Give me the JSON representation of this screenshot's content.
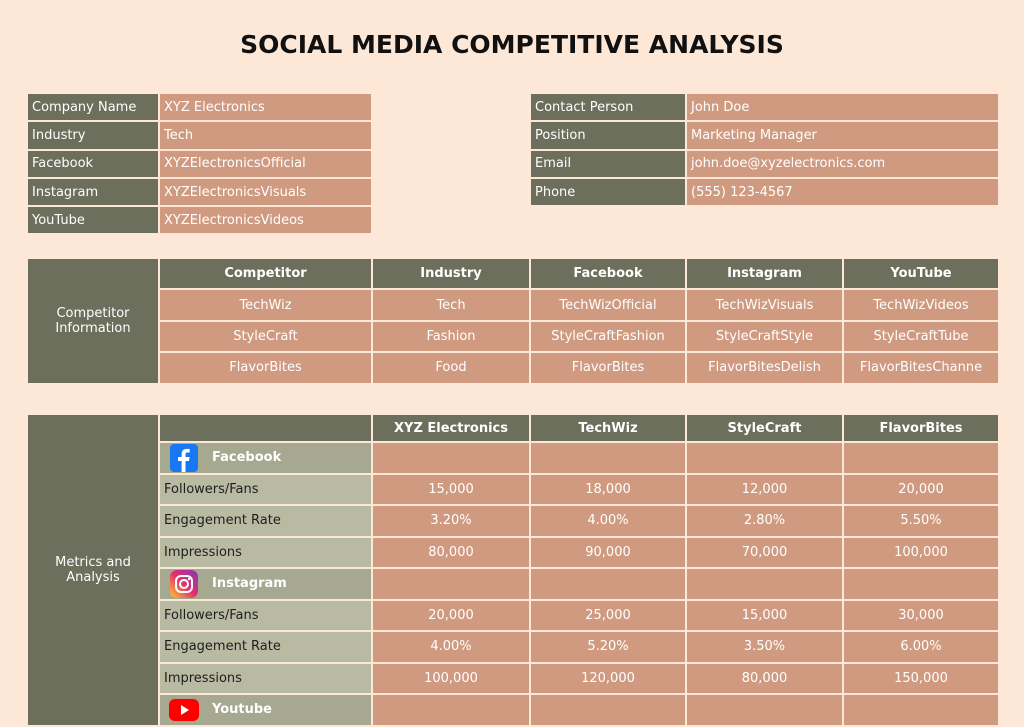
{
  "title": "SOCIAL MEDIA COMPETITIVE ANALYSIS",
  "company_info": {
    "rows": [
      [
        "Company Name",
        "XYZ Electronics"
      ],
      [
        "Industry",
        "Tech"
      ],
      [
        "Facebook",
        "XYZElectronicsOfficial"
      ],
      [
        "Instagram",
        "XYZElectronicsVisuals"
      ],
      [
        "YouTube",
        "XYZElectronicsVideos"
      ]
    ]
  },
  "contact_info": {
    "rows": [
      [
        "Contact Person",
        "John Doe"
      ],
      [
        "Position",
        "Marketing Manager"
      ],
      [
        "Email",
        "john.doe@xyzelectronics.com"
      ],
      [
        "Phone",
        "(555) 123-4567"
      ]
    ]
  },
  "competitors": {
    "label": "Competitor Information",
    "header": [
      "Competitor",
      "Industry",
      "Facebook",
      "Instagram",
      "YouTube"
    ],
    "rows": [
      [
        "TechWiz",
        "Tech",
        "TechWizOfficial",
        "TechWizVisuals",
        "TechWizVideos"
      ],
      [
        "StyleCraft",
        "Fashion",
        "StyleCraftFashion",
        "StyleCraftStyle",
        "StyleCraftTube"
      ],
      [
        "FlavorBites",
        "Food",
        "FlavorBites",
        "FlavorBitesDelish",
        "FlavorBitesChanne"
      ]
    ]
  },
  "metrics": {
    "label": "Metrics and Analysis",
    "header": [
      "XYZ Electronics",
      "TechWiz",
      "StyleCraft",
      "FlavorBites"
    ],
    "sections": [
      {
        "platform": "Facebook",
        "rows": [
          {
            "metric": "Followers/Fans",
            "values": [
              "15,000",
              "18,000",
              "12,000",
              "20,000"
            ]
          },
          {
            "metric": "Engagement Rate",
            "values": [
              "3.20%",
              "4.00%",
              "2.80%",
              "5.50%"
            ]
          },
          {
            "metric": "Impressions",
            "values": [
              "80,000",
              "90,000",
              "70,000",
              "100,000"
            ]
          }
        ]
      },
      {
        "platform": "Instagram",
        "rows": [
          {
            "metric": "Followers/Fans",
            "values": [
              "20,000",
              "25,000",
              "15,000",
              "30,000"
            ]
          },
          {
            "metric": "Engagement Rate",
            "values": [
              "4.00%",
              "5.20%",
              "3.50%",
              "6.00%"
            ]
          },
          {
            "metric": "Impressions",
            "values": [
              "100,000",
              "120,000",
              "80,000",
              "150,000"
            ]
          }
        ]
      },
      {
        "platform": "Youtube",
        "rows": []
      }
    ]
  }
}
